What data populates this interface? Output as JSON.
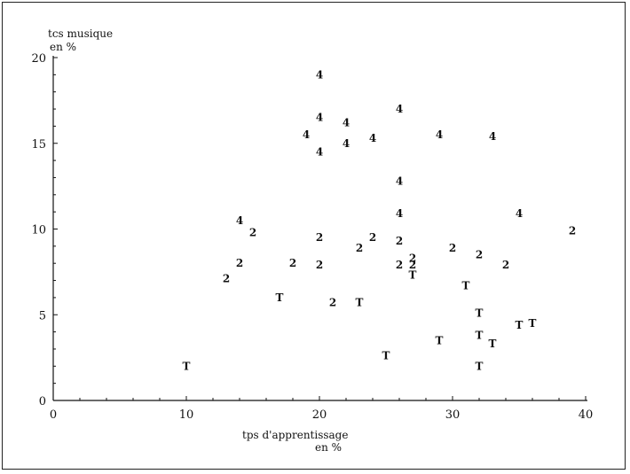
{
  "chart_data": {
    "type": "scatter",
    "title": "",
    "ylabel_line1": "tcs musique",
    "ylabel_line2": "en %",
    "xlabel_line1": "tps d'apprentissage",
    "xlabel_line2": "en %",
    "xlim": [
      0,
      40
    ],
    "ylim": [
      0,
      20
    ],
    "xticks": [
      "0",
      "10",
      "20",
      "30",
      "40"
    ],
    "yticks": [
      "0",
      "5",
      "10",
      "15",
      "20"
    ],
    "grid": false,
    "series": [
      {
        "marker": "4",
        "points": [
          {
            "x": 20,
            "y": 19.0
          },
          {
            "x": 26,
            "y": 17.0
          },
          {
            "x": 20,
            "y": 16.5
          },
          {
            "x": 22,
            "y": 16.2
          },
          {
            "x": 19,
            "y": 15.5
          },
          {
            "x": 24,
            "y": 15.3
          },
          {
            "x": 29,
            "y": 15.5
          },
          {
            "x": 33,
            "y": 15.4
          },
          {
            "x": 22,
            "y": 15.0
          },
          {
            "x": 20,
            "y": 14.5
          },
          {
            "x": 26,
            "y": 12.8
          },
          {
            "x": 26,
            "y": 10.9
          },
          {
            "x": 35,
            "y": 10.9
          },
          {
            "x": 14,
            "y": 10.5
          }
        ]
      },
      {
        "marker": "2",
        "points": [
          {
            "x": 15,
            "y": 9.8
          },
          {
            "x": 20,
            "y": 9.5
          },
          {
            "x": 24,
            "y": 9.5
          },
          {
            "x": 26,
            "y": 9.3
          },
          {
            "x": 30,
            "y": 8.9
          },
          {
            "x": 23,
            "y": 8.9
          },
          {
            "x": 39,
            "y": 9.9
          },
          {
            "x": 32,
            "y": 8.5
          },
          {
            "x": 27,
            "y": 8.3
          },
          {
            "x": 14,
            "y": 8.0
          },
          {
            "x": 18,
            "y": 8.0
          },
          {
            "x": 20,
            "y": 7.9
          },
          {
            "x": 26,
            "y": 7.9
          },
          {
            "x": 27,
            "y": 7.9
          },
          {
            "x": 34,
            "y": 7.9
          },
          {
            "x": 13,
            "y": 7.1
          },
          {
            "x": 21,
            "y": 5.7
          }
        ]
      },
      {
        "marker": "T",
        "points": [
          {
            "x": 27,
            "y": 7.3
          },
          {
            "x": 31,
            "y": 6.7
          },
          {
            "x": 17,
            "y": 6.0
          },
          {
            "x": 23,
            "y": 5.7
          },
          {
            "x": 32,
            "y": 5.1
          },
          {
            "x": 35,
            "y": 4.4
          },
          {
            "x": 36,
            "y": 4.5
          },
          {
            "x": 32,
            "y": 3.8
          },
          {
            "x": 29,
            "y": 3.5
          },
          {
            "x": 33,
            "y": 3.3
          },
          {
            "x": 25,
            "y": 2.6
          },
          {
            "x": 10,
            "y": 2.0
          },
          {
            "x": 32,
            "y": 2.0
          }
        ]
      }
    ]
  }
}
